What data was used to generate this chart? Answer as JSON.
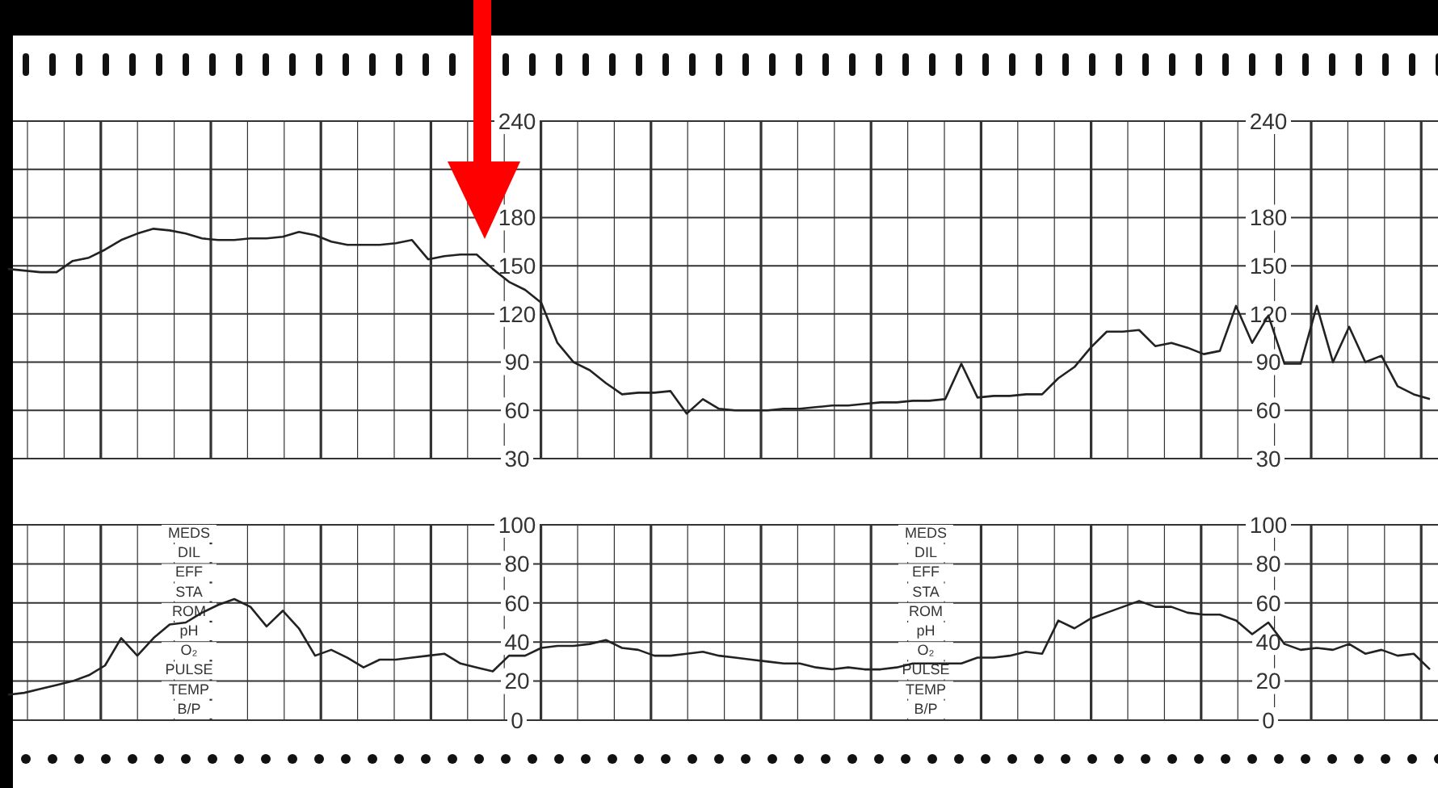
{
  "chart_data": [
    {
      "type": "line",
      "categories": [
        null,
        null,
        null,
        null,
        null,
        null,
        null,
        null,
        null,
        null,
        null,
        null,
        null,
        null,
        null,
        null,
        null,
        null,
        null,
        null,
        null,
        null,
        null,
        null,
        null,
        null,
        null,
        null,
        null,
        null,
        null,
        null,
        null,
        null,
        null,
        null,
        null,
        null,
        null,
        null,
        null,
        null,
        null,
        null,
        null,
        null,
        null,
        null,
        null,
        null,
        null,
        null,
        null,
        null,
        null,
        null,
        null,
        null,
        null,
        null,
        null,
        null,
        null,
        null,
        null,
        null,
        null,
        null,
        null,
        null,
        null,
        null,
        null,
        null,
        null,
        null,
        null,
        null,
        null,
        null,
        null,
        null,
        null,
        null,
        null,
        null,
        null,
        null,
        null
      ],
      "series": [
        {
          "color": "#222222",
          "values": [
            148,
            147,
            146,
            146,
            153,
            155,
            160,
            166,
            170,
            173,
            172,
            170,
            167,
            166,
            166,
            167,
            167,
            168,
            171,
            169,
            165,
            163,
            163,
            163,
            164,
            166,
            154,
            156,
            157,
            157,
            148,
            140,
            135,
            127,
            102,
            90,
            85,
            77,
            70,
            71,
            71,
            72,
            58,
            67,
            61,
            60,
            60,
            60,
            61,
            61,
            62,
            63,
            63,
            64,
            65,
            65,
            66,
            66,
            67,
            89,
            68,
            69,
            69,
            70,
            70,
            80,
            87,
            99,
            109,
            109,
            110,
            100,
            102,
            99,
            95,
            97,
            125,
            102,
            119,
            89,
            89,
            125,
            90,
            112,
            90,
            94,
            75,
            70,
            67
          ]
        }
      ],
      "ylim": [
        30,
        240
      ],
      "yticks": [
        30,
        60,
        90,
        120,
        150,
        180,
        {
          "value": 210,
          "label": null
        },
        240
      ],
      "y2lim": [
        30,
        240
      ],
      "y2ticks": [
        30,
        60,
        90,
        120,
        150,
        180,
        240
      ],
      "grid": true
    },
    {
      "type": "line",
      "categories": [
        null,
        null,
        null,
        null,
        null,
        null,
        null,
        null,
        null,
        null,
        null,
        null,
        null,
        null,
        null,
        null,
        null,
        null,
        null,
        null,
        null,
        null,
        null,
        null,
        null,
        null,
        null,
        null,
        null,
        null,
        null,
        null,
        null,
        null,
        null,
        null,
        null,
        null,
        null,
        null,
        null,
        null,
        null,
        null,
        null,
        null,
        null,
        null,
        null,
        null,
        null,
        null,
        null,
        null,
        null,
        null,
        null,
        null,
        null,
        null,
        null,
        null,
        null,
        null,
        null,
        null,
        null,
        null,
        null,
        null,
        null,
        null,
        null,
        null,
        null,
        null,
        null,
        null,
        null,
        null,
        null,
        null,
        null,
        null,
        null,
        null,
        null,
        null,
        null
      ],
      "series": [
        {
          "color": "#222222",
          "values": [
            13,
            14,
            16,
            18,
            20,
            23,
            28,
            42,
            33,
            42,
            49,
            50,
            55,
            59,
            62,
            58,
            48,
            56,
            47,
            33,
            36,
            32,
            27,
            31,
            31,
            32,
            33,
            34,
            29,
            27,
            25,
            33,
            33,
            37,
            38,
            38,
            39,
            41,
            37,
            36,
            33,
            33,
            34,
            35,
            33,
            32,
            31,
            30,
            29,
            29,
            27,
            26,
            27,
            26,
            26,
            27,
            29,
            29,
            29,
            29,
            32,
            32,
            33,
            35,
            34,
            51,
            47,
            52,
            55,
            58,
            61,
            58,
            58,
            55,
            54,
            54,
            51,
            44,
            50,
            39,
            36,
            37,
            36,
            39,
            34,
            36,
            33,
            34,
            26
          ]
        }
      ],
      "ylim": [
        0,
        100
      ],
      "yticks": [
        0,
        20,
        40,
        60,
        80,
        100
      ],
      "y2lim": [
        0,
        100
      ],
      "y2ticks": [
        0,
        20,
        40,
        60,
        80,
        100
      ],
      "grid": true,
      "annotations": [
        "MEDS",
        "DIL",
        "EFF",
        "STA",
        "ROM",
        "pH",
        "O₂",
        "PULSE",
        "TEMP",
        "B/P",
        "MEDS",
        "DIL",
        "EFF",
        "STA",
        "ROM",
        "pH",
        "O₂",
        "PULSE",
        "TEMP",
        "B/P"
      ]
    }
  ]
}
